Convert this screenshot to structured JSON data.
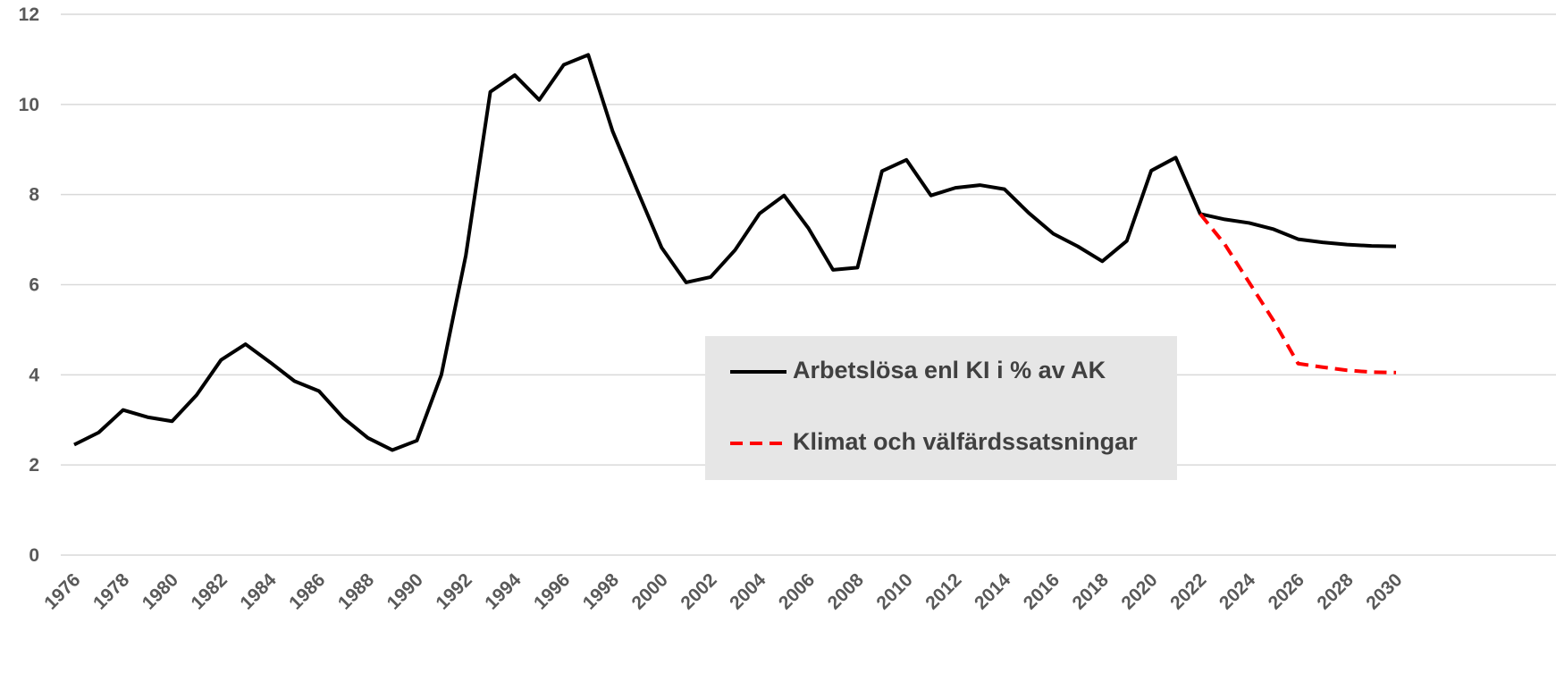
{
  "chart_data": {
    "type": "line",
    "x": [
      1976,
      1977,
      1978,
      1979,
      1980,
      1981,
      1982,
      1983,
      1984,
      1985,
      1986,
      1987,
      1988,
      1989,
      1990,
      1991,
      1992,
      1993,
      1994,
      1995,
      1996,
      1997,
      1998,
      1999,
      2000,
      2001,
      2002,
      2003,
      2004,
      2005,
      2006,
      2007,
      2008,
      2009,
      2010,
      2011,
      2012,
      2013,
      2014,
      2015,
      2016,
      2017,
      2018,
      2019,
      2020,
      2021,
      2022,
      2023,
      2024,
      2025,
      2026,
      2027,
      2028,
      2029,
      2030
    ],
    "xlim": [
      1976,
      2030
    ],
    "xticks": [
      1976,
      1978,
      1980,
      1982,
      1984,
      1986,
      1988,
      1990,
      1992,
      1994,
      1996,
      1998,
      2000,
      2002,
      2004,
      2006,
      2008,
      2010,
      2012,
      2014,
      2016,
      2018,
      2020,
      2022,
      2024,
      2026,
      2028,
      2030
    ],
    "ylim": [
      0,
      12
    ],
    "yticks": [
      0,
      2,
      4,
      6,
      8,
      10,
      12
    ],
    "grid": true,
    "series": [
      {
        "name": "Arbetslösa enl KI i % av AK",
        "color": "#000000",
        "dash": false,
        "values": [
          2.45,
          2.72,
          3.22,
          3.06,
          2.97,
          3.55,
          4.33,
          4.68,
          4.28,
          3.86,
          3.64,
          3.04,
          2.6,
          2.33,
          2.54,
          4.0,
          6.65,
          10.28,
          10.65,
          10.1,
          10.88,
          11.1,
          9.4,
          8.1,
          6.82,
          6.05,
          6.17,
          6.77,
          7.58,
          7.98,
          7.25,
          6.33,
          6.38,
          8.52,
          8.77,
          7.98,
          8.15,
          8.21,
          8.12,
          7.59,
          7.13,
          6.85,
          6.52,
          6.97,
          8.53,
          8.82,
          7.57,
          7.45,
          7.37,
          7.23,
          7.01,
          6.94,
          6.89,
          6.86,
          6.85
        ]
      },
      {
        "name": "Klimat och välfärdssatsningar",
        "color": "#ff0000",
        "dash": true,
        "values": [
          null,
          null,
          null,
          null,
          null,
          null,
          null,
          null,
          null,
          null,
          null,
          null,
          null,
          null,
          null,
          null,
          null,
          null,
          null,
          null,
          null,
          null,
          null,
          null,
          null,
          null,
          null,
          null,
          null,
          null,
          null,
          null,
          null,
          null,
          null,
          null,
          null,
          null,
          null,
          null,
          null,
          null,
          null,
          null,
          null,
          null,
          7.57,
          6.9,
          6.05,
          5.2,
          4.25,
          4.17,
          4.1,
          4.06,
          4.05
        ]
      }
    ]
  }
}
